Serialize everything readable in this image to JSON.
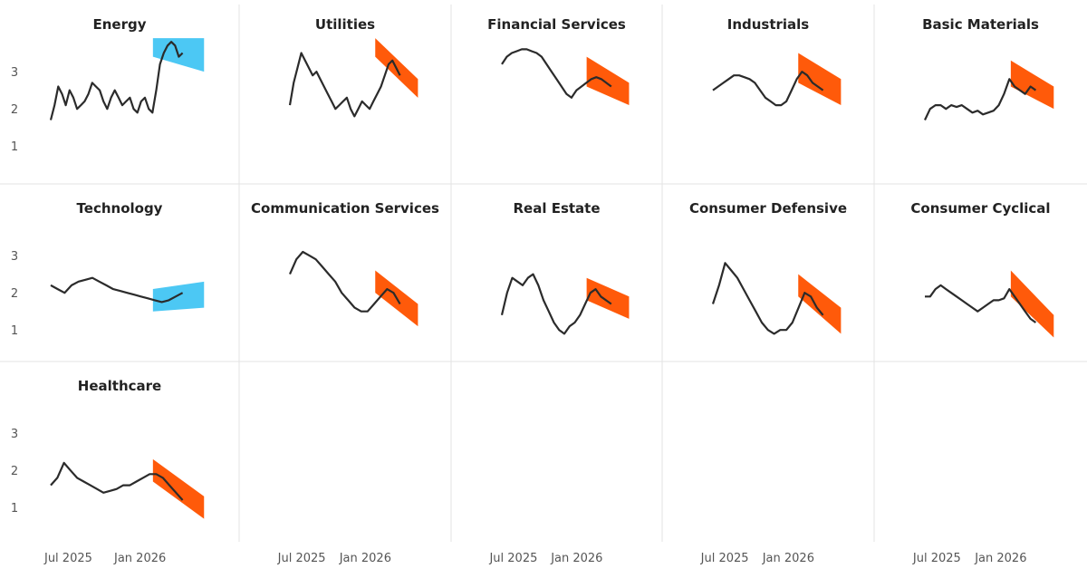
{
  "chart_data": {
    "type": "line",
    "layout": "small-multiples",
    "y_ticks": [
      1,
      2,
      3
    ],
    "y_lim": [
      0.3,
      4.0
    ],
    "x_ticks": [
      {
        "label": "Jul 2025",
        "t": 0.21
      },
      {
        "label": "Jan 2026",
        "t": 0.51
      }
    ],
    "colors": {
      "line": "#2b2b2b",
      "up_band": "#4cc8f4",
      "down_band": "#ff5a0a"
    },
    "panels": [
      {
        "title": "Energy",
        "forecast": "up",
        "values": [
          1.7,
          2.1,
          2.6,
          2.4,
          2.1,
          2.5,
          2.3,
          2.0,
          2.1,
          2.2,
          2.4,
          2.7,
          2.6,
          2.5,
          2.2,
          2.0,
          2.3,
          2.5,
          2.3,
          2.1,
          2.2,
          2.3,
          2.0,
          1.9,
          2.2,
          2.3,
          2.0,
          1.9,
          2.5,
          3.2,
          3.5,
          3.7,
          3.8,
          3.7,
          3.4,
          3.5
        ],
        "band": {
          "start_upper": 3.9,
          "start_lower": 3.4,
          "end_upper": 3.9,
          "end_lower": 3.0
        }
      },
      {
        "title": "Utilities",
        "forecast": "down",
        "values": [
          2.1,
          2.7,
          3.1,
          3.5,
          3.3,
          3.1,
          2.9,
          3.0,
          2.8,
          2.6,
          2.4,
          2.2,
          2.0,
          2.1,
          2.2,
          2.3,
          2.0,
          1.8,
          2.0,
          2.2,
          2.1,
          2.0,
          2.2,
          2.4,
          2.6,
          2.9,
          3.2,
          3.3,
          3.1,
          2.9
        ],
        "band": {
          "start_upper": 3.9,
          "start_lower": 3.4,
          "end_upper": 2.8,
          "end_lower": 2.3
        }
      },
      {
        "title": "Financial Services",
        "forecast": "down",
        "values": [
          3.2,
          3.4,
          3.5,
          3.55,
          3.6,
          3.6,
          3.55,
          3.5,
          3.4,
          3.2,
          3.0,
          2.8,
          2.6,
          2.4,
          2.3,
          2.5,
          2.6,
          2.7,
          2.8,
          2.85,
          2.8,
          2.7,
          2.6
        ],
        "band": {
          "start_upper": 3.4,
          "start_lower": 2.6,
          "end_upper": 2.7,
          "end_lower": 2.1
        }
      },
      {
        "title": "Industrials",
        "forecast": "down",
        "values": [
          2.5,
          2.6,
          2.7,
          2.8,
          2.9,
          2.9,
          2.85,
          2.8,
          2.7,
          2.5,
          2.3,
          2.2,
          2.1,
          2.1,
          2.2,
          2.5,
          2.8,
          3.0,
          2.9,
          2.7,
          2.6,
          2.5
        ],
        "band": {
          "start_upper": 3.5,
          "start_lower": 2.7,
          "end_upper": 2.8,
          "end_lower": 2.1
        }
      },
      {
        "title": "Basic Materials",
        "forecast": "down",
        "values": [
          1.7,
          2.0,
          2.1,
          2.1,
          2.0,
          2.1,
          2.05,
          2.1,
          2.0,
          1.9,
          1.95,
          1.85,
          1.9,
          1.95,
          2.1,
          2.4,
          2.8,
          2.6,
          2.5,
          2.4,
          2.6,
          2.5
        ],
        "band": {
          "start_upper": 3.3,
          "start_lower": 2.6,
          "end_upper": 2.6,
          "end_lower": 2.0
        }
      },
      {
        "title": "Technology",
        "forecast": "up",
        "values": [
          2.2,
          2.1,
          2.0,
          2.2,
          2.3,
          2.35,
          2.4,
          2.3,
          2.2,
          2.1,
          2.05,
          2.0,
          1.95,
          1.9,
          1.85,
          1.8,
          1.75,
          1.8,
          1.9,
          2.0
        ],
        "band": {
          "start_upper": 2.1,
          "start_lower": 1.5,
          "end_upper": 2.3,
          "end_lower": 1.6
        }
      },
      {
        "title": "Communication Services",
        "forecast": "down",
        "values": [
          2.5,
          2.9,
          3.1,
          3.0,
          2.9,
          2.7,
          2.5,
          2.3,
          2.0,
          1.8,
          1.6,
          1.5,
          1.5,
          1.7,
          1.9,
          2.1,
          2.0,
          1.7
        ],
        "band": {
          "start_upper": 2.6,
          "start_lower": 2.0,
          "end_upper": 1.7,
          "end_lower": 1.1
        }
      },
      {
        "title": "Real Estate",
        "forecast": "down",
        "values": [
          1.4,
          2.0,
          2.4,
          2.3,
          2.2,
          2.4,
          2.5,
          2.2,
          1.8,
          1.5,
          1.2,
          1.0,
          0.9,
          1.1,
          1.2,
          1.4,
          1.7,
          2.0,
          2.1,
          1.9,
          1.8,
          1.7
        ],
        "band": {
          "start_upper": 2.4,
          "start_lower": 1.8,
          "end_upper": 1.9,
          "end_lower": 1.3
        }
      },
      {
        "title": "Consumer Defensive",
        "forecast": "down",
        "values": [
          1.7,
          2.2,
          2.8,
          2.6,
          2.4,
          2.1,
          1.8,
          1.5,
          1.2,
          1.0,
          0.9,
          1.0,
          1.0,
          1.2,
          1.6,
          2.0,
          1.9,
          1.6,
          1.4
        ],
        "band": {
          "start_upper": 2.5,
          "start_lower": 1.9,
          "end_upper": 1.6,
          "end_lower": 0.9
        }
      },
      {
        "title": "Consumer Cyclical",
        "forecast": "down",
        "values": [
          1.9,
          1.9,
          2.1,
          2.2,
          2.1,
          2.0,
          1.9,
          1.8,
          1.7,
          1.6,
          1.5,
          1.6,
          1.7,
          1.8,
          1.8,
          1.85,
          2.1,
          1.9,
          1.7,
          1.5,
          1.3,
          1.2
        ],
        "band": {
          "start_upper": 2.6,
          "start_lower": 1.9,
          "end_upper": 1.4,
          "end_lower": 0.8
        }
      },
      {
        "title": "Healthcare",
        "forecast": "down",
        "values": [
          1.6,
          1.8,
          2.2,
          2.0,
          1.8,
          1.7,
          1.6,
          1.5,
          1.4,
          1.45,
          1.5,
          1.6,
          1.6,
          1.7,
          1.8,
          1.9,
          1.9,
          1.8,
          1.6,
          1.4,
          1.2
        ],
        "band": {
          "start_upper": 2.3,
          "start_lower": 1.7,
          "end_upper": 1.3,
          "end_lower": 0.7
        }
      }
    ]
  }
}
